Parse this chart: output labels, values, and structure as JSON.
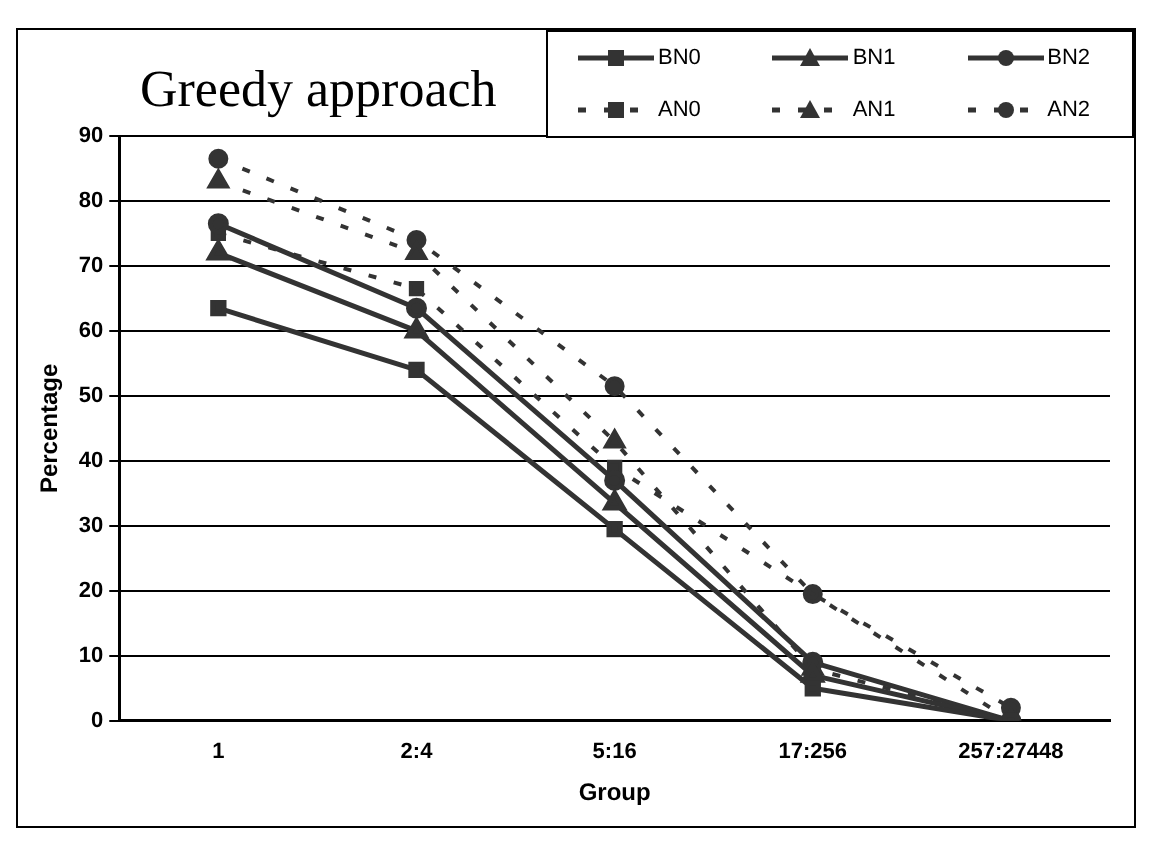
{
  "chart_data": {
    "type": "line",
    "title": "Greedy approach",
    "xlabel": "Group",
    "ylabel": "Percentage",
    "categories": [
      "1",
      "2:4",
      "5:16",
      "17:256",
      "257:27448"
    ],
    "series": [
      {
        "name": "BN0",
        "color": "#333333",
        "marker": "square",
        "line_style": "solid",
        "values": [
          63.5,
          54,
          29.5,
          5,
          0
        ]
      },
      {
        "name": "BN1",
        "color": "#333333",
        "marker": "triangle",
        "line_style": "solid",
        "values": [
          72,
          60,
          33.5,
          7,
          0
        ]
      },
      {
        "name": "BN2",
        "color": "#333333",
        "marker": "circle",
        "line_style": "solid",
        "values": [
          76.5,
          63.5,
          37,
          9,
          0
        ]
      },
      {
        "name": "AN0",
        "color": "#333333",
        "marker": "square",
        "line_style": "dashed",
        "values": [
          75,
          66.5,
          39,
          null,
          0
        ]
      },
      {
        "name": "AN1",
        "color": "#333333",
        "marker": "triangle",
        "line_style": "dashed",
        "values": [
          83,
          72,
          43,
          8,
          0
        ]
      },
      {
        "name": "AN2",
        "color": "#333333",
        "marker": "circle",
        "line_style": "dashed",
        "values": [
          86.5,
          74,
          51.5,
          19.5,
          2
        ]
      }
    ],
    "ylim": [
      0,
      90
    ],
    "yticks": [
      0,
      10,
      20,
      30,
      40,
      50,
      60,
      70,
      80,
      90
    ],
    "grid": "y",
    "legend": "top right"
  }
}
